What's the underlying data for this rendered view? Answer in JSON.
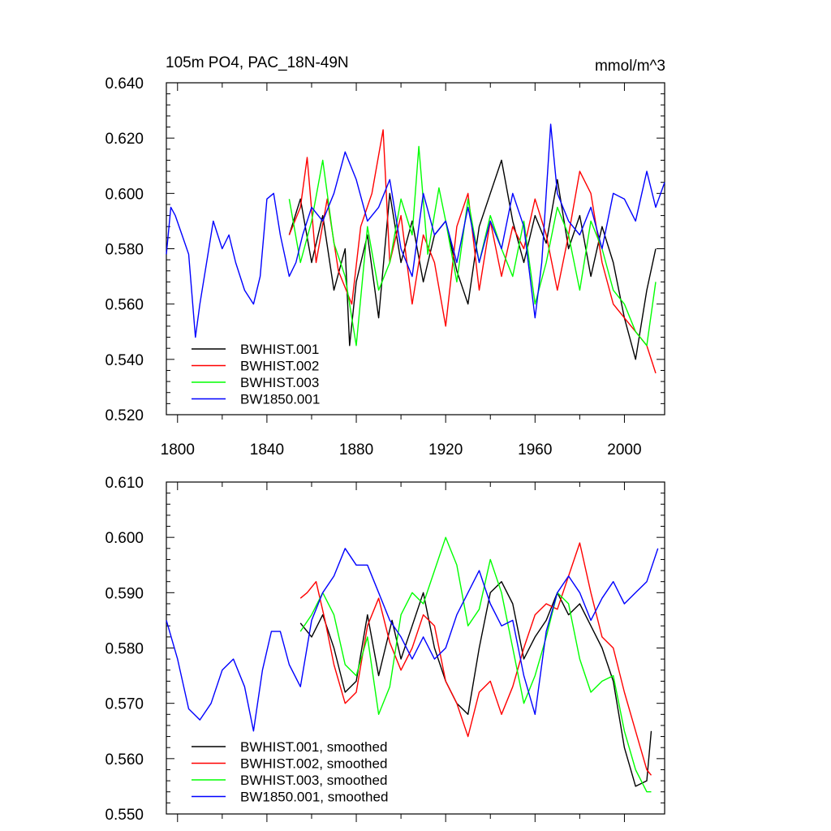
{
  "chart_data": [
    {
      "type": "line",
      "title": "105m PO4, PAC_18N-49N",
      "units": "mmol/m^3",
      "xlim": [
        1795,
        2018
      ],
      "ylim": [
        0.52,
        0.64
      ],
      "yticks": [
        "0.520",
        "0.540",
        "0.560",
        "0.580",
        "0.600",
        "0.620",
        "0.640"
      ],
      "xticks": [
        "1800",
        "1840",
        "1880",
        "1920",
        "1960",
        "2000"
      ],
      "legend": {
        "placement": "bottom-left"
      },
      "series": [
        {
          "name": "BWHIST.001",
          "color": "#000000",
          "x": [
            1850,
            1855,
            1860,
            1865,
            1870,
            1875,
            1877,
            1880,
            1885,
            1890,
            1895,
            1900,
            1905,
            1910,
            1915,
            1920,
            1925,
            1930,
            1935,
            1940,
            1945,
            1950,
            1955,
            1960,
            1965,
            1970,
            1975,
            1980,
            1985,
            1990,
            1995,
            2000,
            2005,
            2010,
            2014
          ],
          "y": [
            0.585,
            0.598,
            0.575,
            0.592,
            0.565,
            0.58,
            0.545,
            0.568,
            0.585,
            0.555,
            0.6,
            0.575,
            0.59,
            0.568,
            0.585,
            0.59,
            0.572,
            0.56,
            0.588,
            0.6,
            0.612,
            0.59,
            0.575,
            0.592,
            0.582,
            0.605,
            0.58,
            0.592,
            0.57,
            0.588,
            0.575,
            0.555,
            0.54,
            0.565,
            0.58
          ]
        },
        {
          "name": "BWHIST.002",
          "color": "#ff0000",
          "x": [
            1850,
            1855,
            1858,
            1862,
            1867,
            1872,
            1878,
            1882,
            1887,
            1892,
            1895,
            1900,
            1905,
            1910,
            1915,
            1920,
            1925,
            1930,
            1935,
            1940,
            1945,
            1950,
            1955,
            1960,
            1965,
            1970,
            1975,
            1980,
            1985,
            1990,
            1995,
            2000,
            2005,
            2010,
            2014
          ],
          "y": [
            0.585,
            0.595,
            0.613,
            0.575,
            0.598,
            0.572,
            0.56,
            0.588,
            0.6,
            0.623,
            0.575,
            0.592,
            0.56,
            0.585,
            0.575,
            0.552,
            0.588,
            0.6,
            0.565,
            0.59,
            0.57,
            0.588,
            0.58,
            0.598,
            0.585,
            0.565,
            0.585,
            0.608,
            0.6,
            0.575,
            0.56,
            0.555,
            0.55,
            0.545,
            0.535
          ]
        },
        {
          "name": "BWHIST.003",
          "color": "#00ff00",
          "x": [
            1850,
            1855,
            1860,
            1865,
            1870,
            1875,
            1880,
            1885,
            1890,
            1895,
            1900,
            1905,
            1908,
            1912,
            1917,
            1920,
            1925,
            1930,
            1935,
            1940,
            1945,
            1950,
            1955,
            1960,
            1965,
            1970,
            1975,
            1980,
            1985,
            1990,
            1995,
            2000,
            2005,
            2010,
            2014
          ],
          "y": [
            0.598,
            0.575,
            0.59,
            0.612,
            0.582,
            0.57,
            0.545,
            0.588,
            0.565,
            0.575,
            0.598,
            0.585,
            0.617,
            0.578,
            0.602,
            0.59,
            0.568,
            0.598,
            0.575,
            0.592,
            0.58,
            0.57,
            0.59,
            0.56,
            0.575,
            0.595,
            0.585,
            0.565,
            0.59,
            0.58,
            0.565,
            0.56,
            0.55,
            0.545,
            0.568
          ]
        },
        {
          "name": "BW1850.001",
          "color": "#0000ff",
          "x": [
            1795,
            1797,
            1799,
            1802,
            1805,
            1808,
            1810,
            1813,
            1816,
            1820,
            1823,
            1826,
            1830,
            1834,
            1837,
            1840,
            1843,
            1846,
            1850,
            1853,
            1856,
            1860,
            1865,
            1870,
            1875,
            1880,
            1885,
            1890,
            1895,
            1900,
            1905,
            1910,
            1915,
            1920,
            1925,
            1930,
            1935,
            1940,
            1945,
            1950,
            1955,
            1960,
            1963,
            1967,
            1970,
            1975,
            1980,
            1985,
            1990,
            1995,
            2000,
            2005,
            2010,
            2014,
            2018
          ],
          "y": [
            0.578,
            0.595,
            0.592,
            0.585,
            0.578,
            0.548,
            0.56,
            0.575,
            0.59,
            0.58,
            0.585,
            0.575,
            0.565,
            0.56,
            0.57,
            0.598,
            0.6,
            0.585,
            0.57,
            0.575,
            0.585,
            0.595,
            0.59,
            0.6,
            0.615,
            0.605,
            0.59,
            0.595,
            0.605,
            0.58,
            0.57,
            0.6,
            0.585,
            0.59,
            0.575,
            0.595,
            0.575,
            0.59,
            0.58,
            0.6,
            0.588,
            0.555,
            0.575,
            0.625,
            0.6,
            0.59,
            0.585,
            0.595,
            0.58,
            0.6,
            0.598,
            0.59,
            0.608,
            0.595,
            0.604
          ]
        }
      ]
    },
    {
      "type": "line",
      "title": "",
      "xlim": [
        1795,
        2018
      ],
      "ylim": [
        0.55,
        0.61
      ],
      "yticks": [
        "0.550",
        "0.560",
        "0.570",
        "0.580",
        "0.590",
        "0.600",
        "0.610"
      ],
      "xticks": [],
      "legend": {
        "placement": "bottom-left"
      },
      "series": [
        {
          "name": "BWHIST.001, smoothed",
          "color": "#000000",
          "x": [
            1855,
            1860,
            1865,
            1870,
            1875,
            1880,
            1885,
            1890,
            1893,
            1896,
            1900,
            1905,
            1910,
            1915,
            1920,
            1925,
            1930,
            1935,
            1940,
            1945,
            1950,
            1955,
            1960,
            1965,
            1970,
            1975,
            1980,
            1985,
            1990,
            1995,
            2000,
            2005,
            2010,
            2012
          ],
          "y": [
            0.5845,
            0.582,
            0.586,
            0.58,
            0.572,
            0.574,
            0.586,
            0.575,
            0.58,
            0.585,
            0.578,
            0.584,
            0.59,
            0.58,
            0.574,
            0.57,
            0.568,
            0.58,
            0.59,
            0.592,
            0.588,
            0.578,
            0.582,
            0.585,
            0.59,
            0.586,
            0.588,
            0.584,
            0.58,
            0.574,
            0.562,
            0.555,
            0.556,
            0.565
          ]
        },
        {
          "name": "BWHIST.002, smoothed",
          "color": "#ff0000",
          "x": [
            1855,
            1858,
            1862,
            1866,
            1870,
            1875,
            1880,
            1885,
            1890,
            1895,
            1900,
            1905,
            1910,
            1915,
            1920,
            1925,
            1930,
            1935,
            1940,
            1945,
            1950,
            1955,
            1960,
            1965,
            1970,
            1975,
            1980,
            1985,
            1990,
            1995,
            2000,
            2005,
            2010,
            2012
          ],
          "y": [
            0.589,
            0.59,
            0.592,
            0.585,
            0.577,
            0.57,
            0.572,
            0.584,
            0.589,
            0.581,
            0.576,
            0.58,
            0.586,
            0.584,
            0.574,
            0.57,
            0.564,
            0.572,
            0.574,
            0.568,
            0.573,
            0.58,
            0.586,
            0.588,
            0.587,
            0.593,
            0.599,
            0.59,
            0.582,
            0.58,
            0.572,
            0.565,
            0.558,
            0.557
          ]
        },
        {
          "name": "BWHIST.003, smoothed",
          "color": "#00ff00",
          "x": [
            1855,
            1860,
            1865,
            1870,
            1875,
            1880,
            1885,
            1890,
            1895,
            1900,
            1905,
            1910,
            1915,
            1920,
            1925,
            1930,
            1935,
            1940,
            1945,
            1950,
            1955,
            1960,
            1965,
            1970,
            1975,
            1980,
            1985,
            1990,
            1995,
            2000,
            2005,
            2010,
            2012
          ],
          "y": [
            0.583,
            0.586,
            0.59,
            0.586,
            0.577,
            0.575,
            0.582,
            0.568,
            0.573,
            0.586,
            0.59,
            0.588,
            0.594,
            0.6,
            0.595,
            0.584,
            0.587,
            0.596,
            0.59,
            0.58,
            0.57,
            0.575,
            0.582,
            0.59,
            0.588,
            0.578,
            0.572,
            0.574,
            0.575,
            0.565,
            0.558,
            0.554,
            0.554
          ]
        },
        {
          "name": "BW1850.001, smoothed",
          "color": "#0000ff",
          "x": [
            1795,
            1800,
            1805,
            1810,
            1815,
            1820,
            1825,
            1830,
            1834,
            1838,
            1842,
            1846,
            1850,
            1855,
            1860,
            1865,
            1870,
            1875,
            1880,
            1885,
            1890,
            1895,
            1900,
            1905,
            1910,
            1915,
            1920,
            1925,
            1930,
            1935,
            1940,
            1945,
            1950,
            1955,
            1960,
            1965,
            1970,
            1975,
            1980,
            1985,
            1990,
            1995,
            2000,
            2005,
            2010,
            2015
          ],
          "y": [
            0.585,
            0.578,
            0.569,
            0.567,
            0.57,
            0.576,
            0.578,
            0.573,
            0.565,
            0.576,
            0.583,
            0.583,
            0.577,
            0.573,
            0.585,
            0.59,
            0.593,
            0.598,
            0.595,
            0.595,
            0.59,
            0.585,
            0.582,
            0.578,
            0.582,
            0.578,
            0.58,
            0.586,
            0.59,
            0.594,
            0.588,
            0.584,
            0.585,
            0.575,
            0.568,
            0.583,
            0.59,
            0.593,
            0.59,
            0.585,
            0.589,
            0.592,
            0.588,
            0.59,
            0.592,
            0.598
          ]
        }
      ]
    }
  ]
}
